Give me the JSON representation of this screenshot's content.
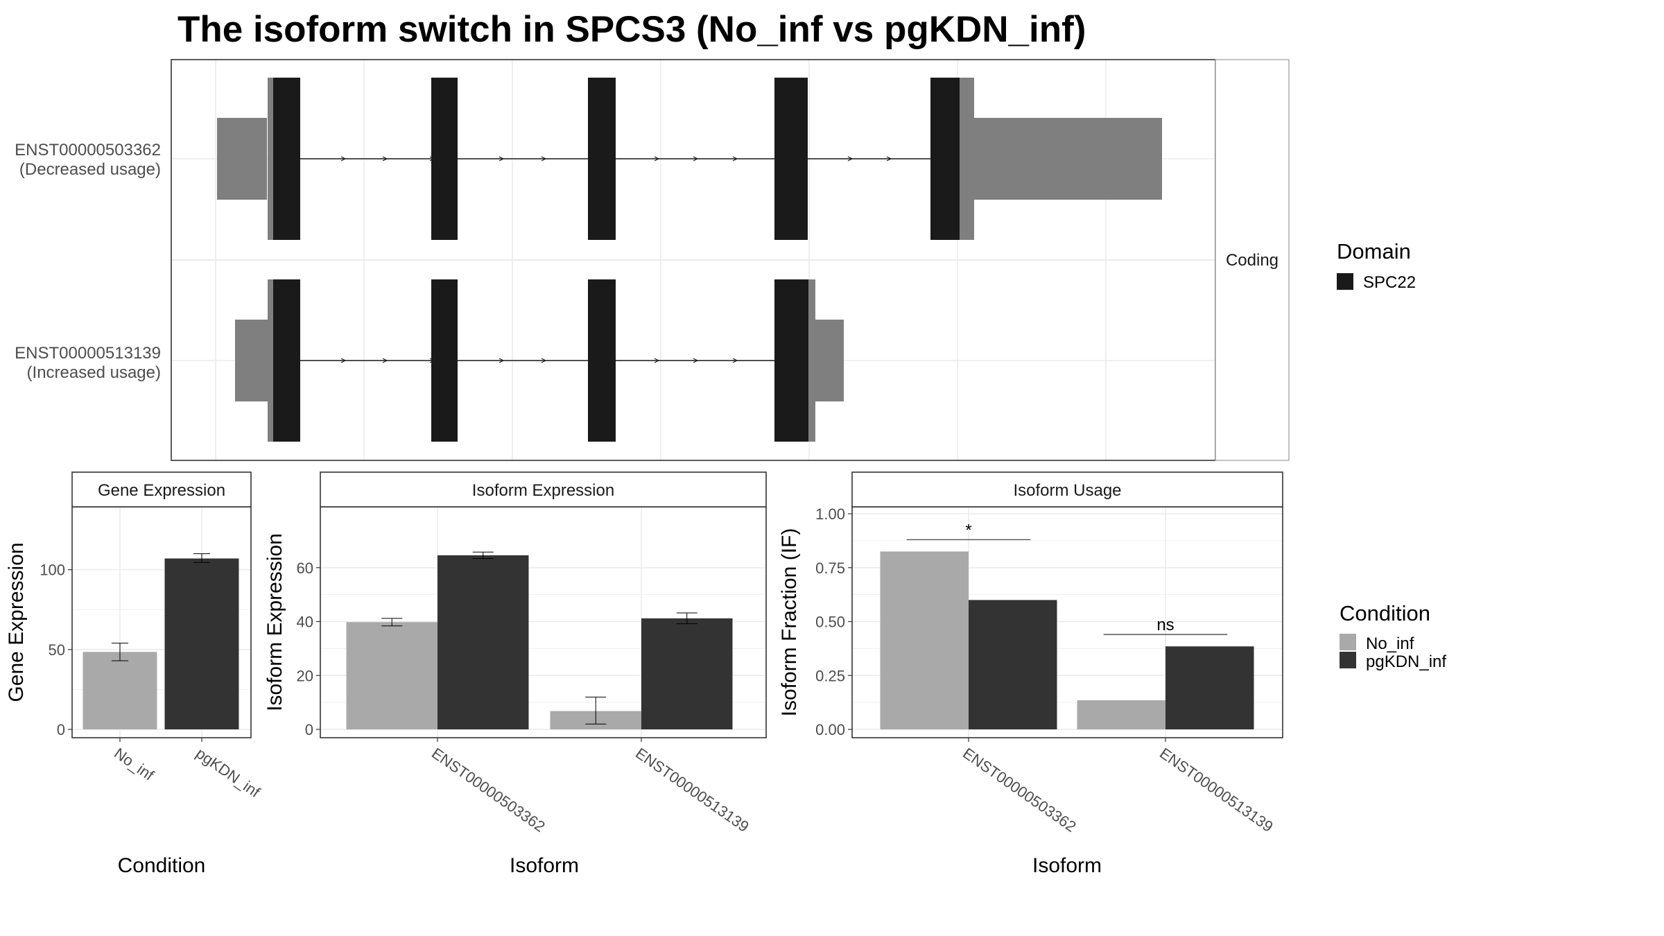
{
  "title": "The isoform switch in SPCS3 (No_inf vs pgKDN_inf)",
  "colors": {
    "domain_SPC22": "#1a1a1a",
    "utr": "#7f7f7f",
    "no_inf": "#a9a9a9",
    "pgkdn_inf": "#333333",
    "grid": "#ebebeb",
    "panel_border": "#333333",
    "strip_bg": "#ffffff"
  },
  "transcript_panel": {
    "strip_label": "Coding",
    "transcripts": [
      {
        "id": "ENST00000503362",
        "usage": "(Decreased usage)"
      },
      {
        "id": "ENST00000513139",
        "usage": "(Increased usage)"
      }
    ]
  },
  "domain_legend": {
    "title": "Domain",
    "items": [
      {
        "label": "SPC22",
        "color": "#1a1a1a"
      }
    ]
  },
  "condition_legend": {
    "title": "Condition",
    "items": [
      {
        "label": "No_inf",
        "color": "#a9a9a9"
      },
      {
        "label": "pgKDN_inf",
        "color": "#333333"
      }
    ]
  },
  "chart_data": [
    {
      "type": "bar",
      "title": "Gene Expression",
      "xlabel": "Condition",
      "ylabel": "Gene Expression",
      "ylim": [
        0,
        135
      ],
      "yticks": [
        0,
        50,
        100
      ],
      "categories": [
        "No_inf",
        "pgKDN_inf"
      ],
      "values": [
        48.5,
        107
      ],
      "errors": [
        [
          43,
          54
        ],
        [
          104.5,
          110
        ]
      ]
    },
    {
      "type": "bar",
      "title": "Isoform Expression",
      "xlabel": "Isoform",
      "ylabel": "Isoform Expression",
      "ylim": [
        0,
        80
      ],
      "yticks": [
        0,
        20,
        40,
        60
      ],
      "categories": [
        "ENST00000503362",
        "ENST00000513139"
      ],
      "series": [
        {
          "name": "No_inf",
          "values": [
            39.8,
            6.8
          ],
          "errors": [
            [
              38.4,
              41.2
            ],
            [
              2,
              12
            ]
          ]
        },
        {
          "name": "pgKDN_inf",
          "values": [
            64.6,
            41.2
          ],
          "errors": [
            [
              63.4,
              65.8
            ],
            [
              39.2,
              43.2
            ]
          ]
        }
      ]
    },
    {
      "type": "bar",
      "title": "Isoform Usage",
      "xlabel": "Isoform",
      "ylabel": "Isoform Fraction (IF)",
      "ylim": [
        0,
        1
      ],
      "yticks": [
        "0.00",
        "0.25",
        "0.50",
        "0.75",
        "1.00"
      ],
      "categories": [
        "ENST00000503362",
        "ENST00000513139"
      ],
      "series": [
        {
          "name": "No_inf",
          "values": [
            0.825,
            0.135
          ]
        },
        {
          "name": "pgKDN_inf",
          "values": [
            0.6,
            0.385
          ]
        }
      ],
      "significance": [
        "*",
        "ns"
      ]
    }
  ]
}
